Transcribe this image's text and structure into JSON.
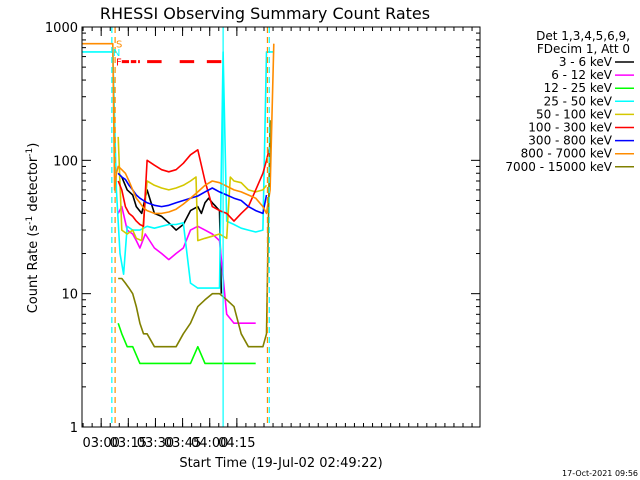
{
  "chart_data": {
    "type": "line",
    "title": "RHESSI Observing Summary Count Rates",
    "xlabel": "Start Time (19-Jul-02 02:49:22)",
    "ylabel_main": "Count Rate (s",
    "ylabel_sup1": "-1",
    "ylabel_mid": " detector",
    "ylabel_sup2": "-1",
    "ylabel_end": ")",
    "yscale": "log",
    "ylim": [
      1,
      1000
    ],
    "xlim": [
      0,
      220
    ],
    "x_unit": "minutes after 02:49:22",
    "yticks": [
      {
        "value": 1,
        "label": "1"
      },
      {
        "value": 10,
        "label": "10"
      },
      {
        "value": 100,
        "label": "100"
      },
      {
        "value": 1000,
        "label": "1000"
      }
    ],
    "xticks": [
      {
        "value": 10.6,
        "label": "03:00"
      },
      {
        "value": 25.6,
        "label": "03:15"
      },
      {
        "value": 40.6,
        "label": "03:30"
      },
      {
        "value": 55.6,
        "label": "03:45"
      },
      {
        "value": 70.6,
        "label": "04:00"
      },
      {
        "value": 85.6,
        "label": "04:15"
      }
    ],
    "legend_header": [
      "Det 1,3,4,5,6,9,",
      "FDecim 1, Att 0"
    ],
    "timestamp": "17-Oct-2021 09:56",
    "flags": [
      {
        "label": "S",
        "color": "#ff8c00",
        "value": 750
      },
      {
        "label": "F",
        "color": "#ff0000",
        "value": 550
      },
      {
        "label": "N",
        "color": "#00ffff",
        "value": 650
      }
    ],
    "series": [
      {
        "name": "3 - 6 keV",
        "color": "#000000",
        "x": [
          20,
          22,
          25,
          28,
          30,
          33,
          36,
          40,
          44,
          48,
          52,
          56,
          60,
          64,
          66,
          68,
          70,
          72,
          74,
          76,
          77
        ],
        "values": [
          80,
          75,
          60,
          55,
          45,
          40,
          60,
          40,
          38,
          34,
          30,
          33,
          42,
          45,
          40,
          48,
          52,
          48,
          45,
          42,
          10
        ]
      },
      {
        "name": "6 - 12 keV",
        "color": "#ff00ff",
        "x": [
          20,
          22,
          25,
          28,
          30,
          32,
          35,
          40,
          44,
          48,
          52,
          56,
          60,
          64,
          68,
          72,
          76,
          80,
          84,
          88,
          92,
          96
        ],
        "values": [
          40,
          45,
          30,
          28,
          25,
          22,
          28,
          22,
          20,
          18,
          20,
          22,
          30,
          32,
          30,
          28,
          25,
          7,
          6,
          6,
          6,
          6
        ]
      },
      {
        "name": "12 - 25 keV",
        "color": "#00ff00",
        "x": [
          20,
          22,
          25,
          28,
          32,
          36,
          40,
          44,
          48,
          52,
          56,
          60,
          64,
          68,
          72,
          76,
          80,
          84,
          88,
          92,
          96
        ],
        "values": [
          6,
          5,
          4,
          4,
          3,
          3,
          3,
          3,
          3,
          3,
          3,
          3,
          4,
          3,
          3,
          3,
          3,
          3,
          3,
          3,
          3
        ]
      },
      {
        "name": "25 - 50 keV",
        "color": "#00ffff",
        "x": [
          0,
          17,
          19,
          21,
          23,
          25,
          28,
          32,
          36,
          40,
          44,
          48,
          52,
          56,
          60,
          64,
          68,
          72,
          76,
          78,
          80,
          84,
          88,
          92,
          96,
          100,
          102,
          104,
          106
        ],
        "values": [
          650,
          650,
          60,
          20,
          14,
          32,
          30,
          30,
          32,
          31,
          32,
          33,
          33,
          34,
          12,
          11,
          11,
          11,
          11,
          650,
          35,
          33,
          31,
          30,
          29,
          30,
          650,
          650,
          650
        ]
      },
      {
        "name": "50 - 100 keV",
        "color": "#d4c800",
        "x": [
          20,
          22,
          25,
          28,
          30,
          33,
          36,
          40,
          44,
          48,
          52,
          56,
          60,
          63,
          64,
          68,
          72,
          76,
          80,
          82,
          84,
          88,
          92,
          96,
          100,
          102
        ],
        "values": [
          150,
          30,
          28,
          30,
          26,
          25,
          70,
          65,
          62,
          60,
          62,
          65,
          70,
          75,
          25,
          26,
          27,
          28,
          26,
          75,
          70,
          68,
          60,
          58,
          60,
          65
        ]
      },
      {
        "name": "100 - 300 keV",
        "color": "#ff0000",
        "x": [
          20,
          22,
          24,
          26,
          28,
          30,
          32,
          34,
          36,
          40,
          44,
          48,
          52,
          56,
          60,
          64,
          68,
          72,
          76,
          80,
          84,
          88,
          92,
          96,
          100,
          102,
          104
        ],
        "values": [
          70,
          60,
          45,
          40,
          38,
          35,
          33,
          32,
          100,
          92,
          85,
          82,
          85,
          95,
          110,
          120,
          70,
          45,
          42,
          40,
          35,
          40,
          45,
          60,
          80,
          100,
          130
        ]
      },
      {
        "name": "300 - 800 keV",
        "color": "#0000ff",
        "x": [
          20,
          22,
          24,
          26,
          28,
          30,
          32,
          34,
          36,
          40,
          44,
          48,
          52,
          56,
          60,
          64,
          68,
          72,
          76,
          80,
          84,
          88,
          92,
          96,
          100,
          102
        ],
        "values": [
          80,
          75,
          72,
          65,
          60,
          55,
          52,
          50,
          48,
          46,
          45,
          46,
          48,
          50,
          52,
          54,
          58,
          62,
          58,
          55,
          52,
          50,
          45,
          42,
          40,
          55
        ]
      },
      {
        "name": "800 - 7000 keV",
        "color": "#ff8c00",
        "x": [
          0,
          17,
          18,
          19,
          20,
          22,
          24,
          26,
          28,
          30,
          32,
          34,
          36,
          40,
          44,
          48,
          52,
          56,
          60,
          64,
          68,
          72,
          76,
          80,
          84,
          88,
          92,
          96,
          100,
          102,
          104,
          106
        ],
        "values": [
          750,
          750,
          60,
          80,
          90,
          85,
          80,
          70,
          60,
          52,
          48,
          44,
          42,
          40,
          40,
          41,
          43,
          47,
          52,
          58,
          65,
          70,
          68,
          64,
          60,
          58,
          55,
          52,
          45,
          40,
          60,
          750
        ]
      },
      {
        "name": "7000 - 15000 keV",
        "color": "#808000",
        "x": [
          20,
          22,
          24,
          26,
          28,
          30,
          32,
          34,
          36,
          40,
          44,
          48,
          52,
          56,
          60,
          64,
          68,
          72,
          76,
          80,
          84,
          88,
          92,
          96,
          100,
          102,
          104
        ],
        "values": [
          13,
          13,
          12,
          11,
          10,
          8,
          6,
          5,
          5,
          4,
          4,
          4,
          4,
          5,
          6,
          8,
          9,
          10,
          10,
          9,
          8,
          5,
          4,
          4,
          4,
          5,
          200
        ]
      }
    ],
    "event_lines": [
      {
        "x": 16.5,
        "color": "#00ffff",
        "style": "dashed"
      },
      {
        "x": 18.3,
        "color": "#ff8c00",
        "style": "dashed"
      },
      {
        "x": 102.5,
        "color": "#ff8c00",
        "style": "dashed"
      },
      {
        "x": 103.5,
        "color": "#00ffff",
        "style": "dashed"
      },
      {
        "x": 78,
        "color": "#00ffff",
        "style": "solid"
      }
    ]
  }
}
